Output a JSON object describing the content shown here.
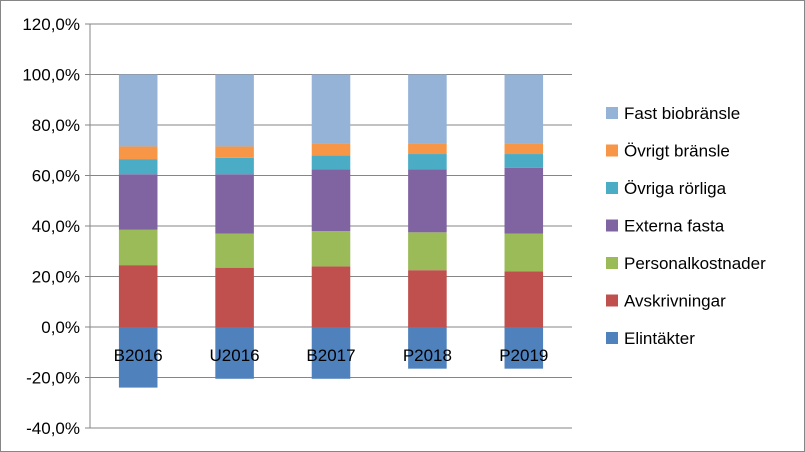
{
  "chart_data": {
    "type": "bar",
    "stacked": true,
    "categories": [
      "B2016",
      "U2016",
      "B2017",
      "P2018",
      "P2019"
    ],
    "ylim": [
      -40,
      120
    ],
    "yticks": [
      -40,
      -20,
      0,
      20,
      40,
      60,
      80,
      100,
      120
    ],
    "ytick_labels": [
      "-40,0%",
      "-20,0%",
      "0,0%",
      "20,0%",
      "40,0%",
      "60,0%",
      "80,0%",
      "100,0%",
      "120,0%"
    ],
    "grid": true,
    "legend_position": "right",
    "series": [
      {
        "name": "Elintäkter",
        "color": "#4F81BD",
        "values": [
          -24,
          -20.5,
          -20.5,
          -16.5,
          -16.5
        ]
      },
      {
        "name": "Avskrivningar",
        "color": "#C0504D",
        "values": [
          24.5,
          23.5,
          24,
          22.5,
          22
        ]
      },
      {
        "name": "Personalkostnader",
        "color": "#9BBB59",
        "values": [
          14,
          13.5,
          14,
          15,
          15
        ]
      },
      {
        "name": "Externa fasta",
        "color": "#8064A2",
        "values": [
          22,
          23.5,
          24.5,
          25,
          26
        ]
      },
      {
        "name": "Övriga rörliga",
        "color": "#4BACC6",
        "values": [
          6,
          6.5,
          5.5,
          6,
          5.5
        ]
      },
      {
        "name": "Övrigt bränsle",
        "color": "#F79646",
        "values": [
          5,
          4.5,
          4.5,
          4,
          4
        ]
      },
      {
        "name": "Fast biobränsle",
        "color": "#95B3D7",
        "values": [
          28.5,
          28.5,
          27.5,
          27.5,
          27.5
        ]
      }
    ]
  }
}
